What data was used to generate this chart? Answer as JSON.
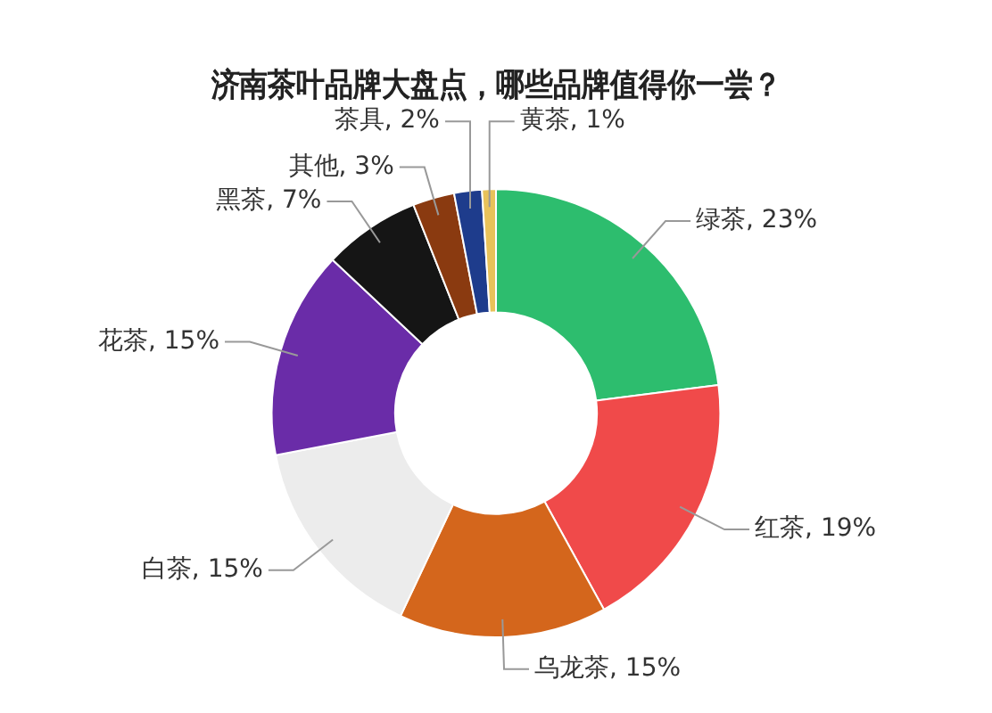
{
  "chart_data": {
    "type": "donut",
    "title": "济南茶叶品牌大盘点，哪些品牌值得你一尝？",
    "categories": [
      "绿茶",
      "红茶",
      "乌龙茶",
      "白茶",
      "花茶",
      "黑茶",
      "其他",
      "茶具",
      "黄茶"
    ],
    "values": [
      23,
      19,
      15,
      15,
      15,
      7,
      3,
      2,
      1
    ],
    "value_labels": [
      "23%",
      "19%",
      "15%",
      "15%",
      "15%",
      "7%",
      "3%",
      "2%",
      "1%"
    ],
    "colors": [
      "#2dbd6e",
      "#f04a4a",
      "#d4661c",
      "#ececec",
      "#6a2ca8",
      "#151515",
      "#8a3a10",
      "#1e3c8c",
      "#e8c25a"
    ],
    "legend": false
  }
}
